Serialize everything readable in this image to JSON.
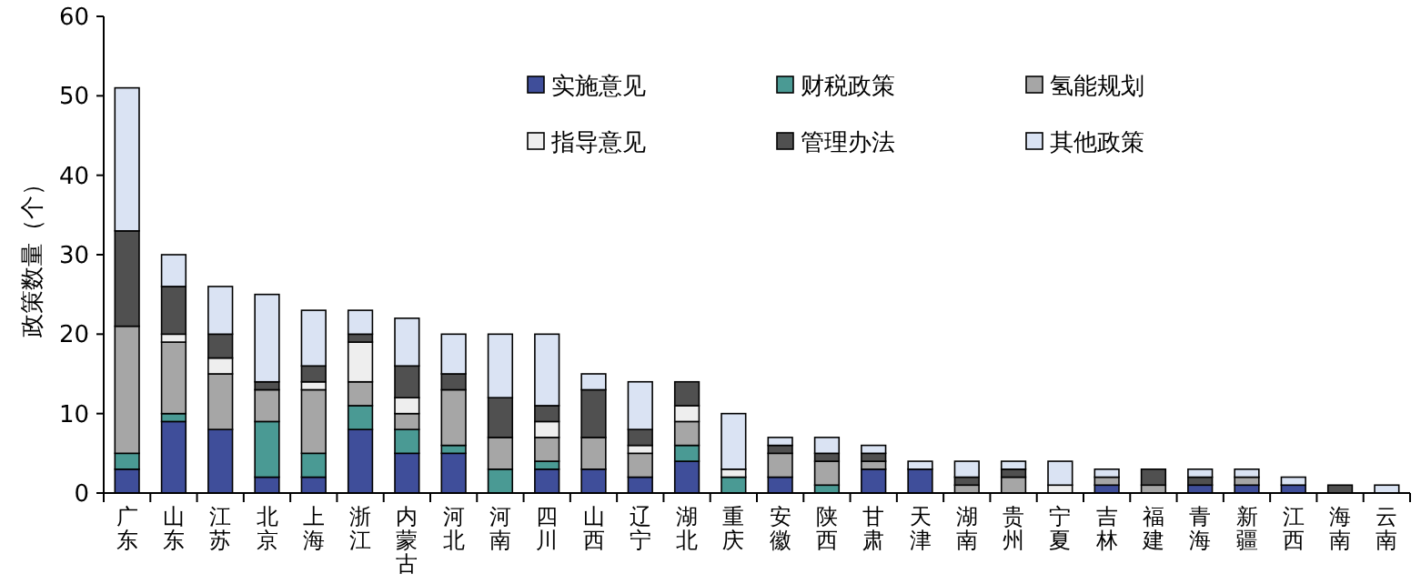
{
  "chart_data": {
    "type": "bar",
    "stacked": true,
    "ylabel": "政策数量（个）",
    "categories": [
      "广东",
      "山东",
      "江苏",
      "北京",
      "上海",
      "浙江",
      "内蒙古",
      "河北",
      "河南",
      "四川",
      "山西",
      "辽宁",
      "湖北",
      "重庆",
      "安徽",
      "陕西",
      "甘肃",
      "天津",
      "湖南",
      "贵州",
      "宁夏",
      "吉林",
      "福建",
      "青海",
      "新疆",
      "江西",
      "海南",
      "云南"
    ],
    "series": [
      {
        "name": "实施意见",
        "color": "#3f4e9a",
        "values": [
          3,
          9,
          8,
          2,
          2,
          8,
          5,
          5,
          0,
          3,
          3,
          2,
          4,
          0,
          2,
          0,
          3,
          3,
          0,
          0,
          0,
          1,
          0,
          1,
          1,
          1,
          0,
          0
        ]
      },
      {
        "name": "财税政策",
        "color": "#4a9a94",
        "values": [
          2,
          1,
          0,
          7,
          3,
          3,
          3,
          1,
          3,
          1,
          0,
          0,
          2,
          2,
          0,
          1,
          0,
          0,
          0,
          0,
          0,
          0,
          0,
          0,
          0,
          0,
          0,
          0
        ]
      },
      {
        "name": "氢能规划",
        "color": "#a6a6a6",
        "values": [
          16,
          9,
          7,
          4,
          8,
          3,
          2,
          7,
          4,
          3,
          4,
          3,
          3,
          0,
          3,
          3,
          1,
          0,
          1,
          2,
          0,
          1,
          1,
          0,
          1,
          0,
          0,
          0
        ]
      },
      {
        "name": "指导意见",
        "color": "#eeeeee",
        "values": [
          0,
          1,
          2,
          0,
          1,
          5,
          2,
          0,
          0,
          2,
          0,
          1,
          2,
          1,
          0,
          0,
          0,
          0,
          0,
          0,
          1,
          0,
          0,
          0,
          0,
          0,
          0,
          0
        ]
      },
      {
        "name": "管理办法",
        "color": "#505050",
        "values": [
          12,
          6,
          3,
          1,
          2,
          1,
          4,
          2,
          5,
          2,
          6,
          2,
          3,
          0,
          1,
          1,
          1,
          0,
          1,
          1,
          0,
          0,
          2,
          1,
          0,
          0,
          1,
          0
        ]
      },
      {
        "name": "其他政策",
        "color": "#dae3f3",
        "values": [
          18,
          4,
          6,
          11,
          7,
          3,
          6,
          5,
          8,
          9,
          2,
          6,
          0,
          7,
          1,
          2,
          1,
          1,
          2,
          1,
          3,
          1,
          0,
          1,
          1,
          1,
          0,
          1
        ]
      }
    ],
    "ylim": [
      0,
      60
    ],
    "yticks": [
      0,
      10,
      20,
      30,
      40,
      50,
      60
    ],
    "legend": "top",
    "grid": false
  }
}
